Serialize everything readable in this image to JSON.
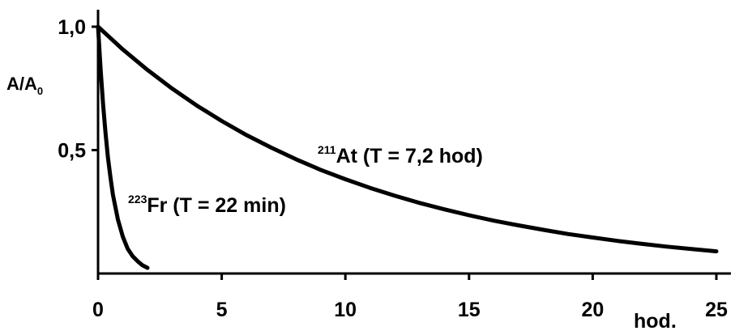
{
  "chart_data": {
    "type": "line",
    "xlabel": "hod.",
    "ylabel_main": "A/A",
    "ylabel_sub": "0",
    "xlim": [
      0,
      25
    ],
    "ylim": [
      0,
      1.0
    ],
    "x_ticks": [
      0,
      5,
      10,
      15,
      20,
      25
    ],
    "x_tick_labels": [
      "0",
      "5",
      "10",
      "15",
      "20",
      "25"
    ],
    "y_ticks": [
      0.5,
      1.0
    ],
    "y_tick_labels": [
      "0,5",
      "1,0"
    ],
    "grid": false,
    "series": [
      {
        "isotope_mass": "223",
        "isotope_rest": "Fr (T = 22 min)",
        "half_life_hours": 0.3667,
        "x": [
          0,
          0.1,
          0.2,
          0.3,
          0.4,
          0.5,
          0.6,
          0.8,
          1.0,
          1.2,
          1.4,
          1.6,
          1.8,
          2.0
        ],
        "y": [
          1.0,
          0.83,
          0.69,
          0.57,
          0.47,
          0.39,
          0.32,
          0.22,
          0.15,
          0.1,
          0.07,
          0.05,
          0.033,
          0.023
        ]
      },
      {
        "isotope_mass": "211",
        "isotope_rest": "At (T = 7,2 hod)",
        "half_life_hours": 7.2,
        "x": [
          0,
          1,
          2,
          3,
          4,
          5,
          6,
          7,
          8,
          9,
          10,
          11,
          12,
          13,
          14,
          15,
          16,
          17,
          18,
          19,
          20,
          21,
          22,
          23,
          24,
          25
        ],
        "y": [
          1.0,
          0.908,
          0.825,
          0.749,
          0.68,
          0.618,
          0.561,
          0.51,
          0.463,
          0.42,
          0.382,
          0.347,
          0.315,
          0.286,
          0.26,
          0.236,
          0.214,
          0.195,
          0.177,
          0.16,
          0.146,
          0.132,
          0.12,
          0.109,
          0.099,
          0.09
        ]
      }
    ]
  }
}
